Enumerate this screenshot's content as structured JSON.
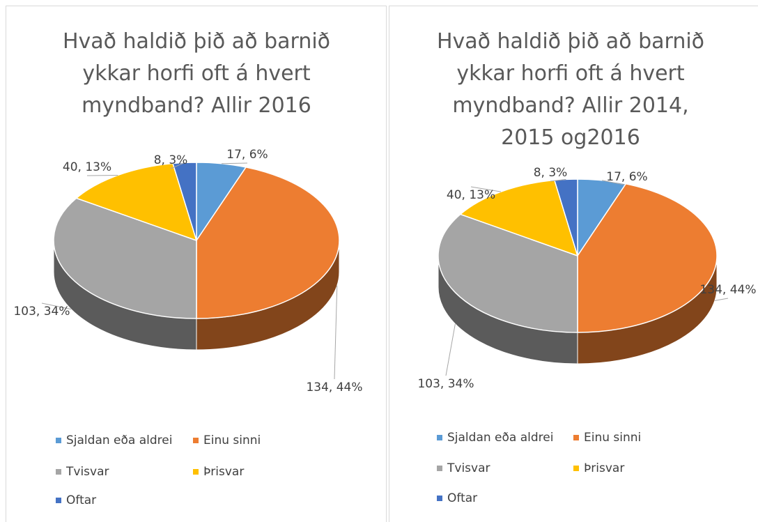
{
  "chart_data": [
    {
      "type": "pie3d",
      "title": "Hvað haldið þið að barnið ykkar horfi oft á hvert myndband? Allir 2016",
      "categories": [
        "Sjaldan eða aldrei",
        "Einu sinni",
        "Tvisvar",
        "Þrisvar",
        "Oftar"
      ],
      "values": [
        17,
        134,
        103,
        40,
        8
      ],
      "value_labels": [
        "17, 6%",
        "134, 44%",
        "103, 34%",
        "40, 13%",
        "8, 3%"
      ],
      "colors": [
        "#5b9bd5",
        "#ed7d31",
        "#a5a5a5",
        "#ffc000",
        "#4472c4"
      ],
      "legend": "bottom"
    },
    {
      "type": "pie3d",
      "title": "Hvað haldið þið að barnið ykkar horfi oft á hvert myndband? Allir 2014, 2015 og2016",
      "categories": [
        "Sjaldan eða aldrei",
        "Einu sinni",
        "Tvisvar",
        "Þrisvar",
        "Oftar"
      ],
      "values": [
        17,
        134,
        103,
        40,
        8
      ],
      "value_labels": [
        "17, 6%",
        "134, 44%",
        "103, 34%",
        "40, 13%",
        "8, 3%"
      ],
      "colors": [
        "#5b9bd5",
        "#ed7d31",
        "#a5a5a5",
        "#ffc000",
        "#4472c4"
      ],
      "legend": "bottom"
    }
  ]
}
